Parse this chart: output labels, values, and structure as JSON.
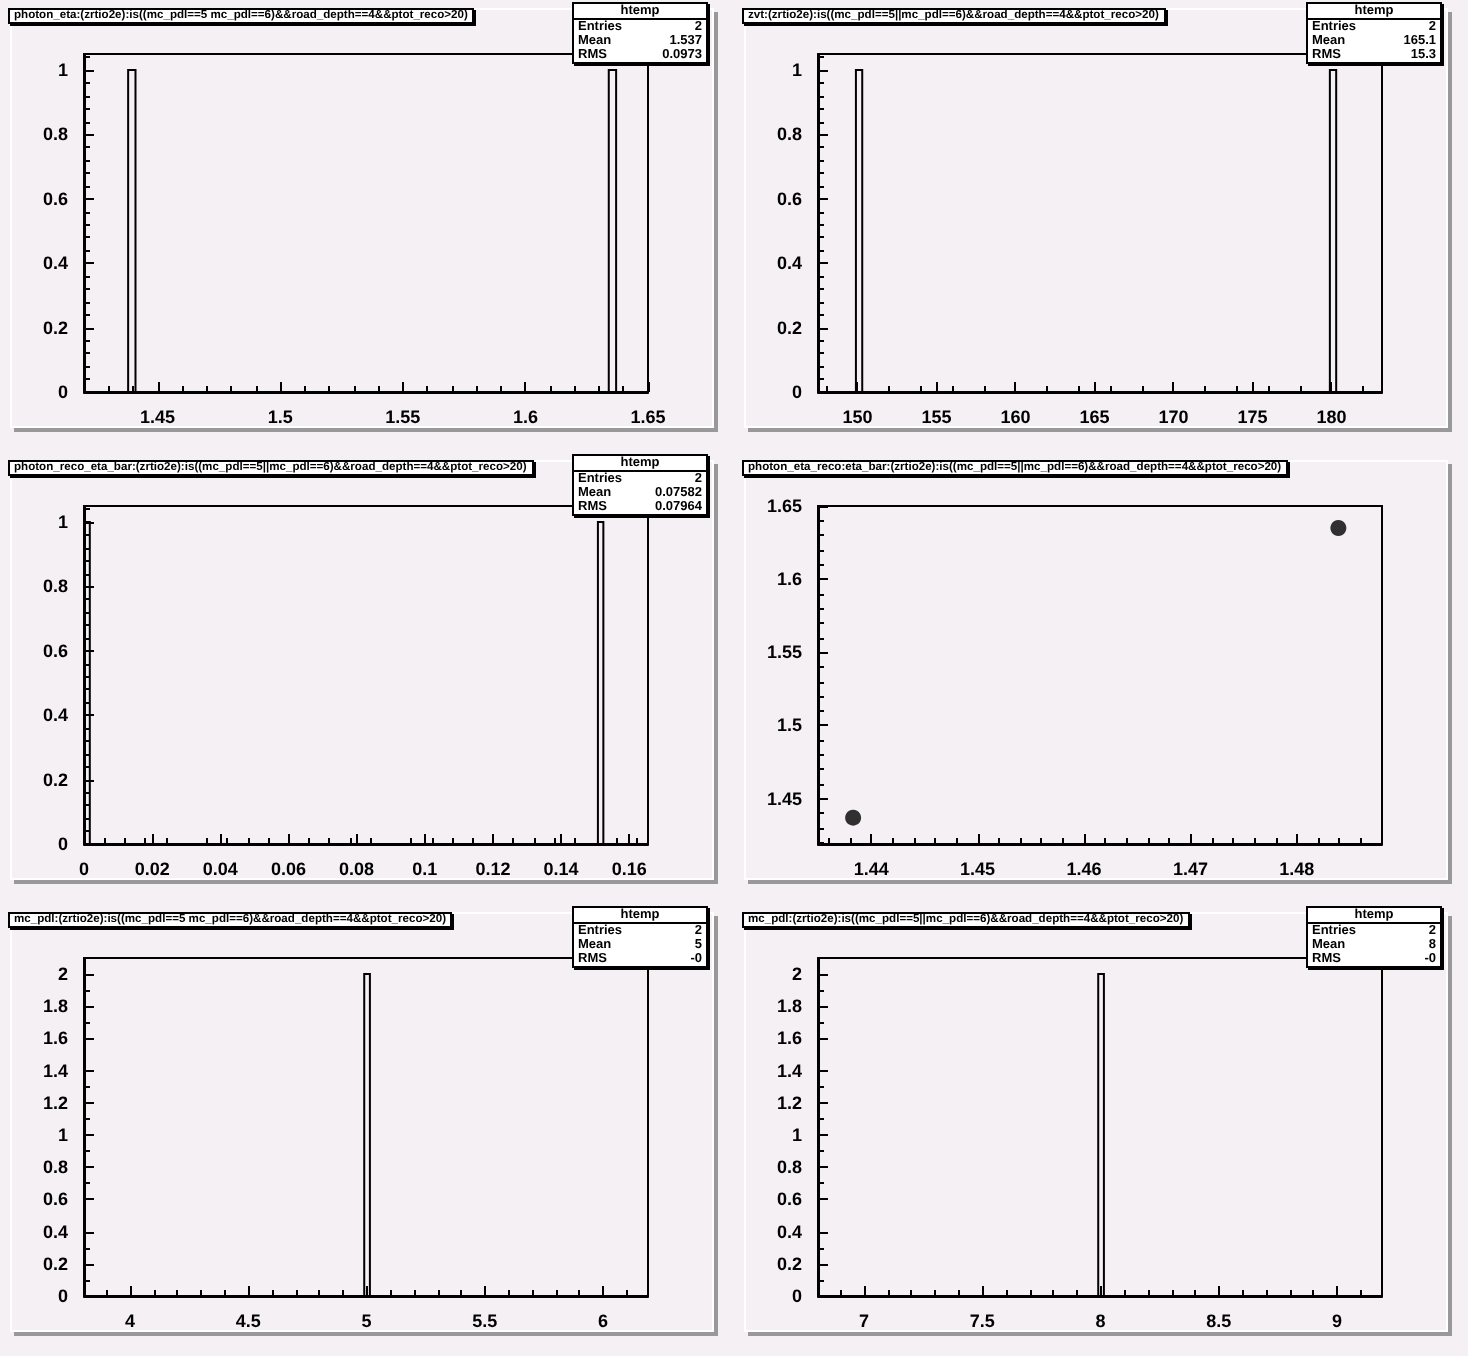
{
  "chart_data": [
    {
      "type": "histogram",
      "title": "photon_eta:(zrtio2e):is((mc_pdl==5 mc_pdl==6)&&road_depth==4&&ptot_reco>20)",
      "bins": [
        1.42,
        1.438,
        1.441,
        1.634,
        1.637,
        1.65
      ],
      "values": [
        0,
        1,
        0,
        1,
        0
      ],
      "color": "#000000",
      "xlim": [
        1.42,
        1.65
      ],
      "xticks": [
        1.45,
        1.5,
        1.55,
        1.6,
        1.65
      ],
      "ylim": [
        0,
        1.05
      ],
      "yticks": [
        0,
        0.2,
        0.4,
        0.6,
        0.8,
        1
      ],
      "annotations": [
        "htemp",
        "Entries",
        "2",
        "Mean",
        "1.537",
        "RMS",
        "0.0973"
      ]
    },
    {
      "type": "histogram",
      "title": "zvt:(zrtio2e):is((mc_pdl==5||mc_pdl==6)&&road_depth==4&&ptot_reco>20)",
      "bins": [
        147.5,
        149.9,
        150.3,
        179.9,
        180.3,
        183.2
      ],
      "values": [
        0,
        1,
        0,
        1,
        0
      ],
      "color": "#000000",
      "xlim": [
        147.5,
        183.2
      ],
      "xticks": [
        150,
        155,
        160,
        165,
        170,
        175,
        180
      ],
      "ylim": [
        0,
        1.05
      ],
      "yticks": [
        0,
        0.2,
        0.4,
        0.6,
        0.8,
        1
      ],
      "annotations": [
        "htemp",
        "Entries",
        "2",
        "Mean",
        "165.1",
        "RMS",
        "15.3"
      ]
    },
    {
      "type": "histogram",
      "title": "photon_reco_eta_bar:(zrtio2e):is((mc_pdl==5||mc_pdl==6)&&road_depth==4&&ptot_reco>20)",
      "bins": [
        0,
        0.0017,
        0.1508,
        0.1524,
        0.1655
      ],
      "values": [
        1,
        0,
        1,
        0
      ],
      "color": "#000000",
      "xlim": [
        0,
        0.1655
      ],
      "xticks": [
        0,
        0.02,
        0.04,
        0.06,
        0.08,
        0.1,
        0.12,
        0.14,
        0.16
      ],
      "ylim": [
        0,
        1.05
      ],
      "yticks": [
        0,
        0.2,
        0.4,
        0.6,
        0.8,
        1
      ],
      "annotations": [
        "htemp",
        "Entries",
        "2",
        "Mean",
        "0.07582",
        "RMS",
        "0.07964"
      ]
    },
    {
      "type": "scatter",
      "title": "photon_eta_reco:eta_bar:(zrtio2e):is((mc_pdl==5||mc_pdl==6)&&road_depth==4&&ptot_reco>20)",
      "x": [
        1.4383,
        1.4839
      ],
      "values": [
        1.437,
        1.635
      ],
      "color": "#000000",
      "marker": "circle",
      "xlim": [
        1.435,
        1.488
      ],
      "xticks": [
        1.44,
        1.45,
        1.46,
        1.47,
        1.48
      ],
      "ylim": [
        1.419,
        1.65
      ],
      "yticks": [
        1.45,
        1.5,
        1.55,
        1.6,
        1.65
      ]
    },
    {
      "type": "histogram",
      "title": "mc_pdl:(zrtio2e):is((mc_pdl==5 mc_pdl==6)&&road_depth==4&&ptot_reco>20)",
      "bins": [
        3.805,
        4.99,
        5.014,
        6.19
      ],
      "values": [
        0,
        2,
        0
      ],
      "color": "#000000",
      "xlim": [
        3.805,
        6.19
      ],
      "xticks": [
        4,
        4.5,
        5,
        5.5,
        6
      ],
      "ylim": [
        0,
        2.1
      ],
      "yticks": [
        0,
        0.2,
        0.4,
        0.6,
        0.8,
        1,
        1.2,
        1.4,
        1.6,
        1.8,
        2
      ],
      "annotations": [
        "htemp",
        "Entries",
        "2",
        "Mean",
        "5",
        "RMS",
        "-0"
      ]
    },
    {
      "type": "histogram",
      "title": "mc_pdl:(zrtio2e):is((mc_pdl==5||mc_pdl==6)&&road_depth==4&&ptot_reco>20)",
      "bins": [
        6.805,
        7.99,
        8.014,
        9.19
      ],
      "values": [
        0,
        2,
        0
      ],
      "color": "#000000",
      "xlim": [
        6.805,
        9.19
      ],
      "xticks": [
        7,
        7.5,
        8,
        8.5,
        9
      ],
      "ylim": [
        0,
        2.1
      ],
      "yticks": [
        0,
        0.2,
        0.4,
        0.6,
        0.8,
        1,
        1.2,
        1.4,
        1.6,
        1.8,
        2
      ],
      "annotations": [
        "htemp",
        "Entries",
        "2",
        "Mean",
        "8",
        "RMS",
        "-0"
      ]
    }
  ]
}
